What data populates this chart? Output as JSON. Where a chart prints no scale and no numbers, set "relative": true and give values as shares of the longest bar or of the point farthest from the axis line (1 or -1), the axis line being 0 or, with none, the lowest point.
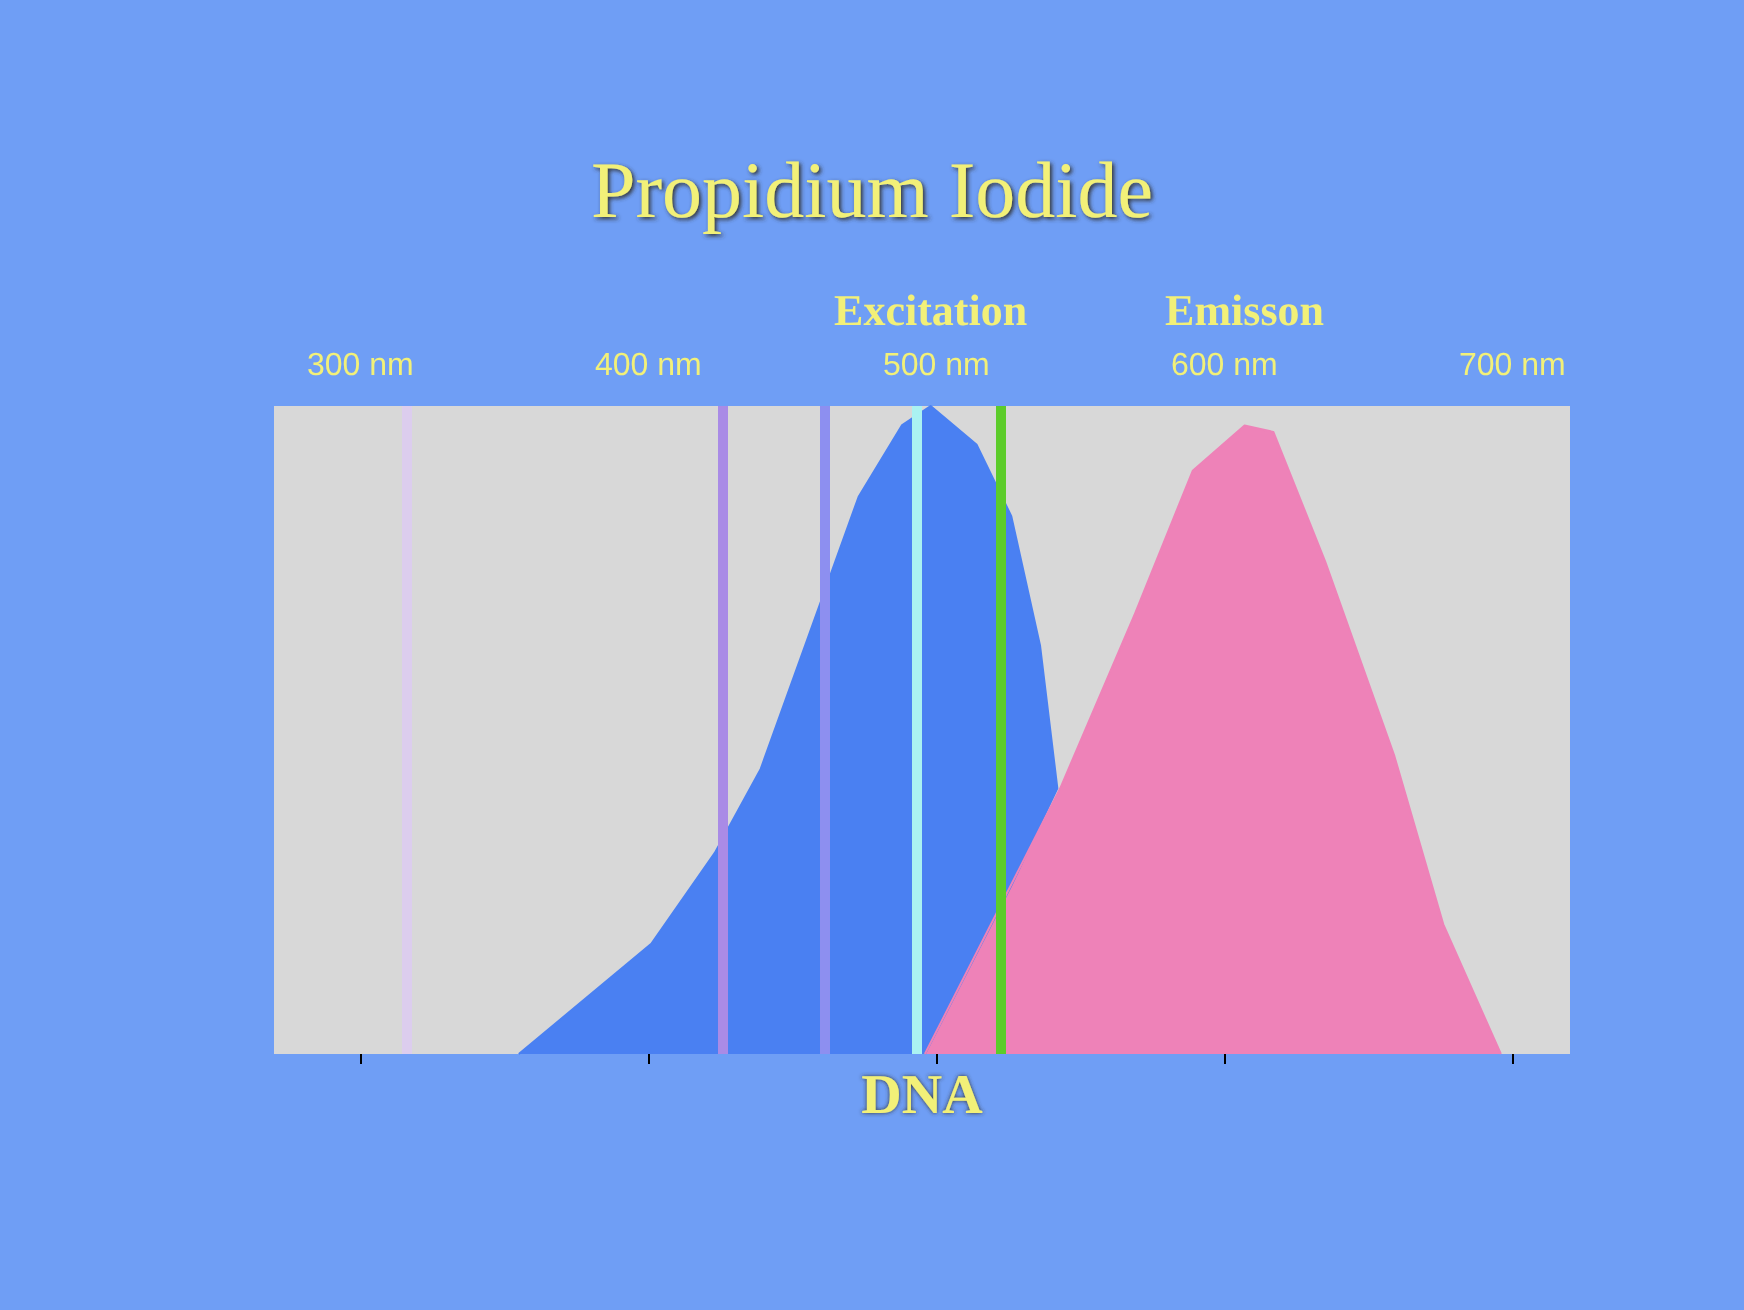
{
  "chart_data": {
    "type": "area",
    "title": "Propidium Iodide",
    "xlabel": "DNA",
    "relative": true,
    "legend": false,
    "grid": false,
    "xlim": [
      270,
      720
    ],
    "xticks": [
      {
        "value": 300,
        "label": "300 nm"
      },
      {
        "value": 400,
        "label": "400 nm"
      },
      {
        "value": 500,
        "label": "500 nm"
      },
      {
        "value": 600,
        "label": "600 nm"
      },
      {
        "value": 700,
        "label": "700 nm"
      }
    ],
    "series": [
      {
        "name": "Excitation",
        "color": "#4a80f2",
        "x": [
          355,
          401,
          423,
          439,
          456,
          473,
          488,
          498,
          514,
          526,
          536,
          542,
          526,
          496
        ],
        "values": [
          0,
          0.17,
          0.31,
          0.44,
          0.65,
          0.86,
          0.97,
          1,
          0.94,
          0.83,
          0.63,
          0.41,
          0.26,
          0
        ]
      },
      {
        "name": "Emisson",
        "color": "#ee82b8",
        "x": [
          496,
          543,
          569,
          589,
          607,
          617,
          635,
          659,
          676,
          696
        ],
        "values": [
          0,
          0.41,
          0.68,
          0.9,
          0.97,
          0.96,
          0.76,
          0.46,
          0.2,
          0
        ]
      }
    ],
    "ref_lines": [
      {
        "axis": "x",
        "value": 316,
        "label": null,
        "color": "#dccdee"
      },
      {
        "axis": "x",
        "value": 426,
        "label": null,
        "color": "#a98be6"
      },
      {
        "axis": "x",
        "value": 461,
        "label": null,
        "color": "#8d8ff0"
      },
      {
        "axis": "x",
        "value": 493,
        "label": null,
        "color": "#aaf2f2"
      },
      {
        "axis": "x",
        "value": 522,
        "label": null,
        "color": "#5ccc2a"
      }
    ]
  }
}
